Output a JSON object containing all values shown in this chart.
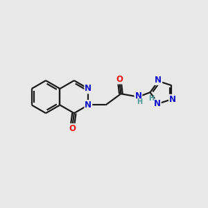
{
  "bg_color": "#e8e8e8",
  "bond_color": "#1a1a1a",
  "bond_width": 1.6,
  "atom_colors": {
    "N": "#1010cc",
    "O": "#ee1111",
    "H_teal": "#4a9898",
    "C": "#1a1a1a"
  },
  "font_size_atom": 8.5,
  "font_size_H": 7.0
}
